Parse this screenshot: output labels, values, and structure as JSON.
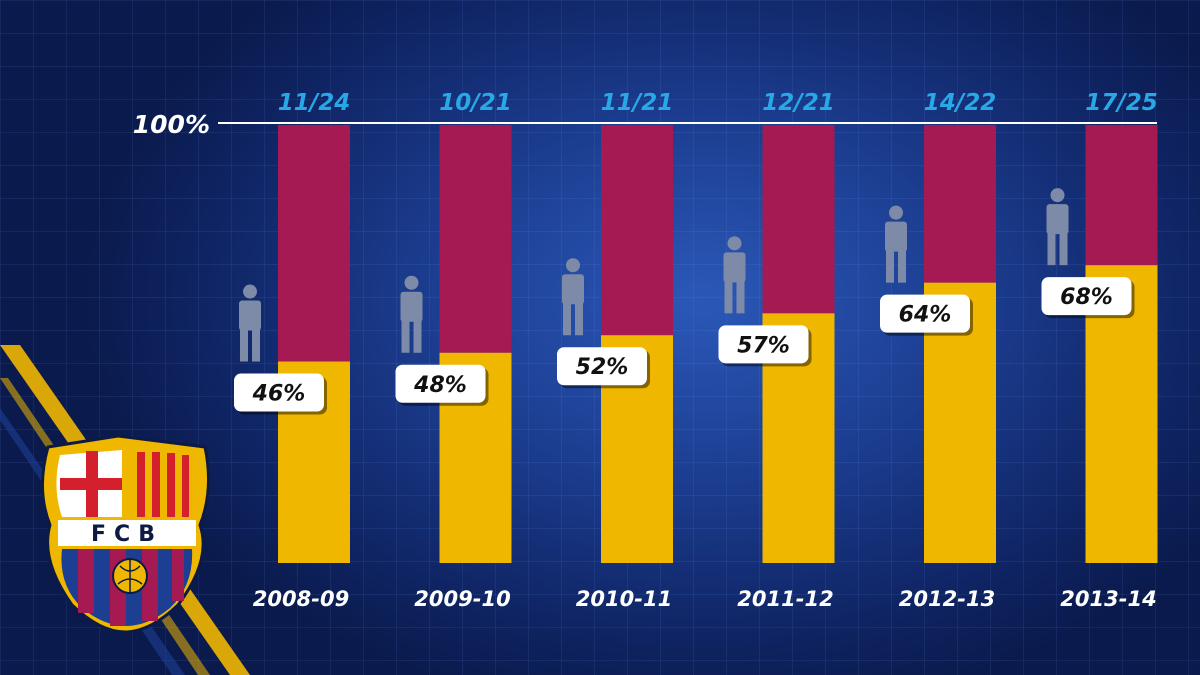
{
  "chart_data": {
    "type": "bar",
    "stacked": true,
    "reference_line_label": "100%",
    "categories": [
      "2008-09",
      "2009-10",
      "2010-11",
      "2011-12",
      "2012-13",
      "2013-14"
    ],
    "top_labels": [
      "11/24",
      "10/21",
      "11/21",
      "12/21",
      "14/22",
      "17/25"
    ],
    "values": [
      46,
      48,
      52,
      57,
      64,
      68
    ],
    "value_labels": [
      "46%",
      "48%",
      "52%",
      "57%",
      "64%",
      "68%"
    ],
    "ylim": [
      0,
      100
    ],
    "colors": {
      "filled": "#efb700",
      "remainder": "#a51a52",
      "reference_line": "#ffffff",
      "top_label": "#29a8e8",
      "person_icon": "#7d8aa8"
    },
    "icon": "person-icon"
  },
  "badge": {
    "text": "FCB",
    "icon": "fcb-crest-icon",
    "colors": {
      "blue": "#1c3f94",
      "garnet": "#a51a52",
      "gold": "#efb700",
      "red": "#d4202c"
    }
  }
}
